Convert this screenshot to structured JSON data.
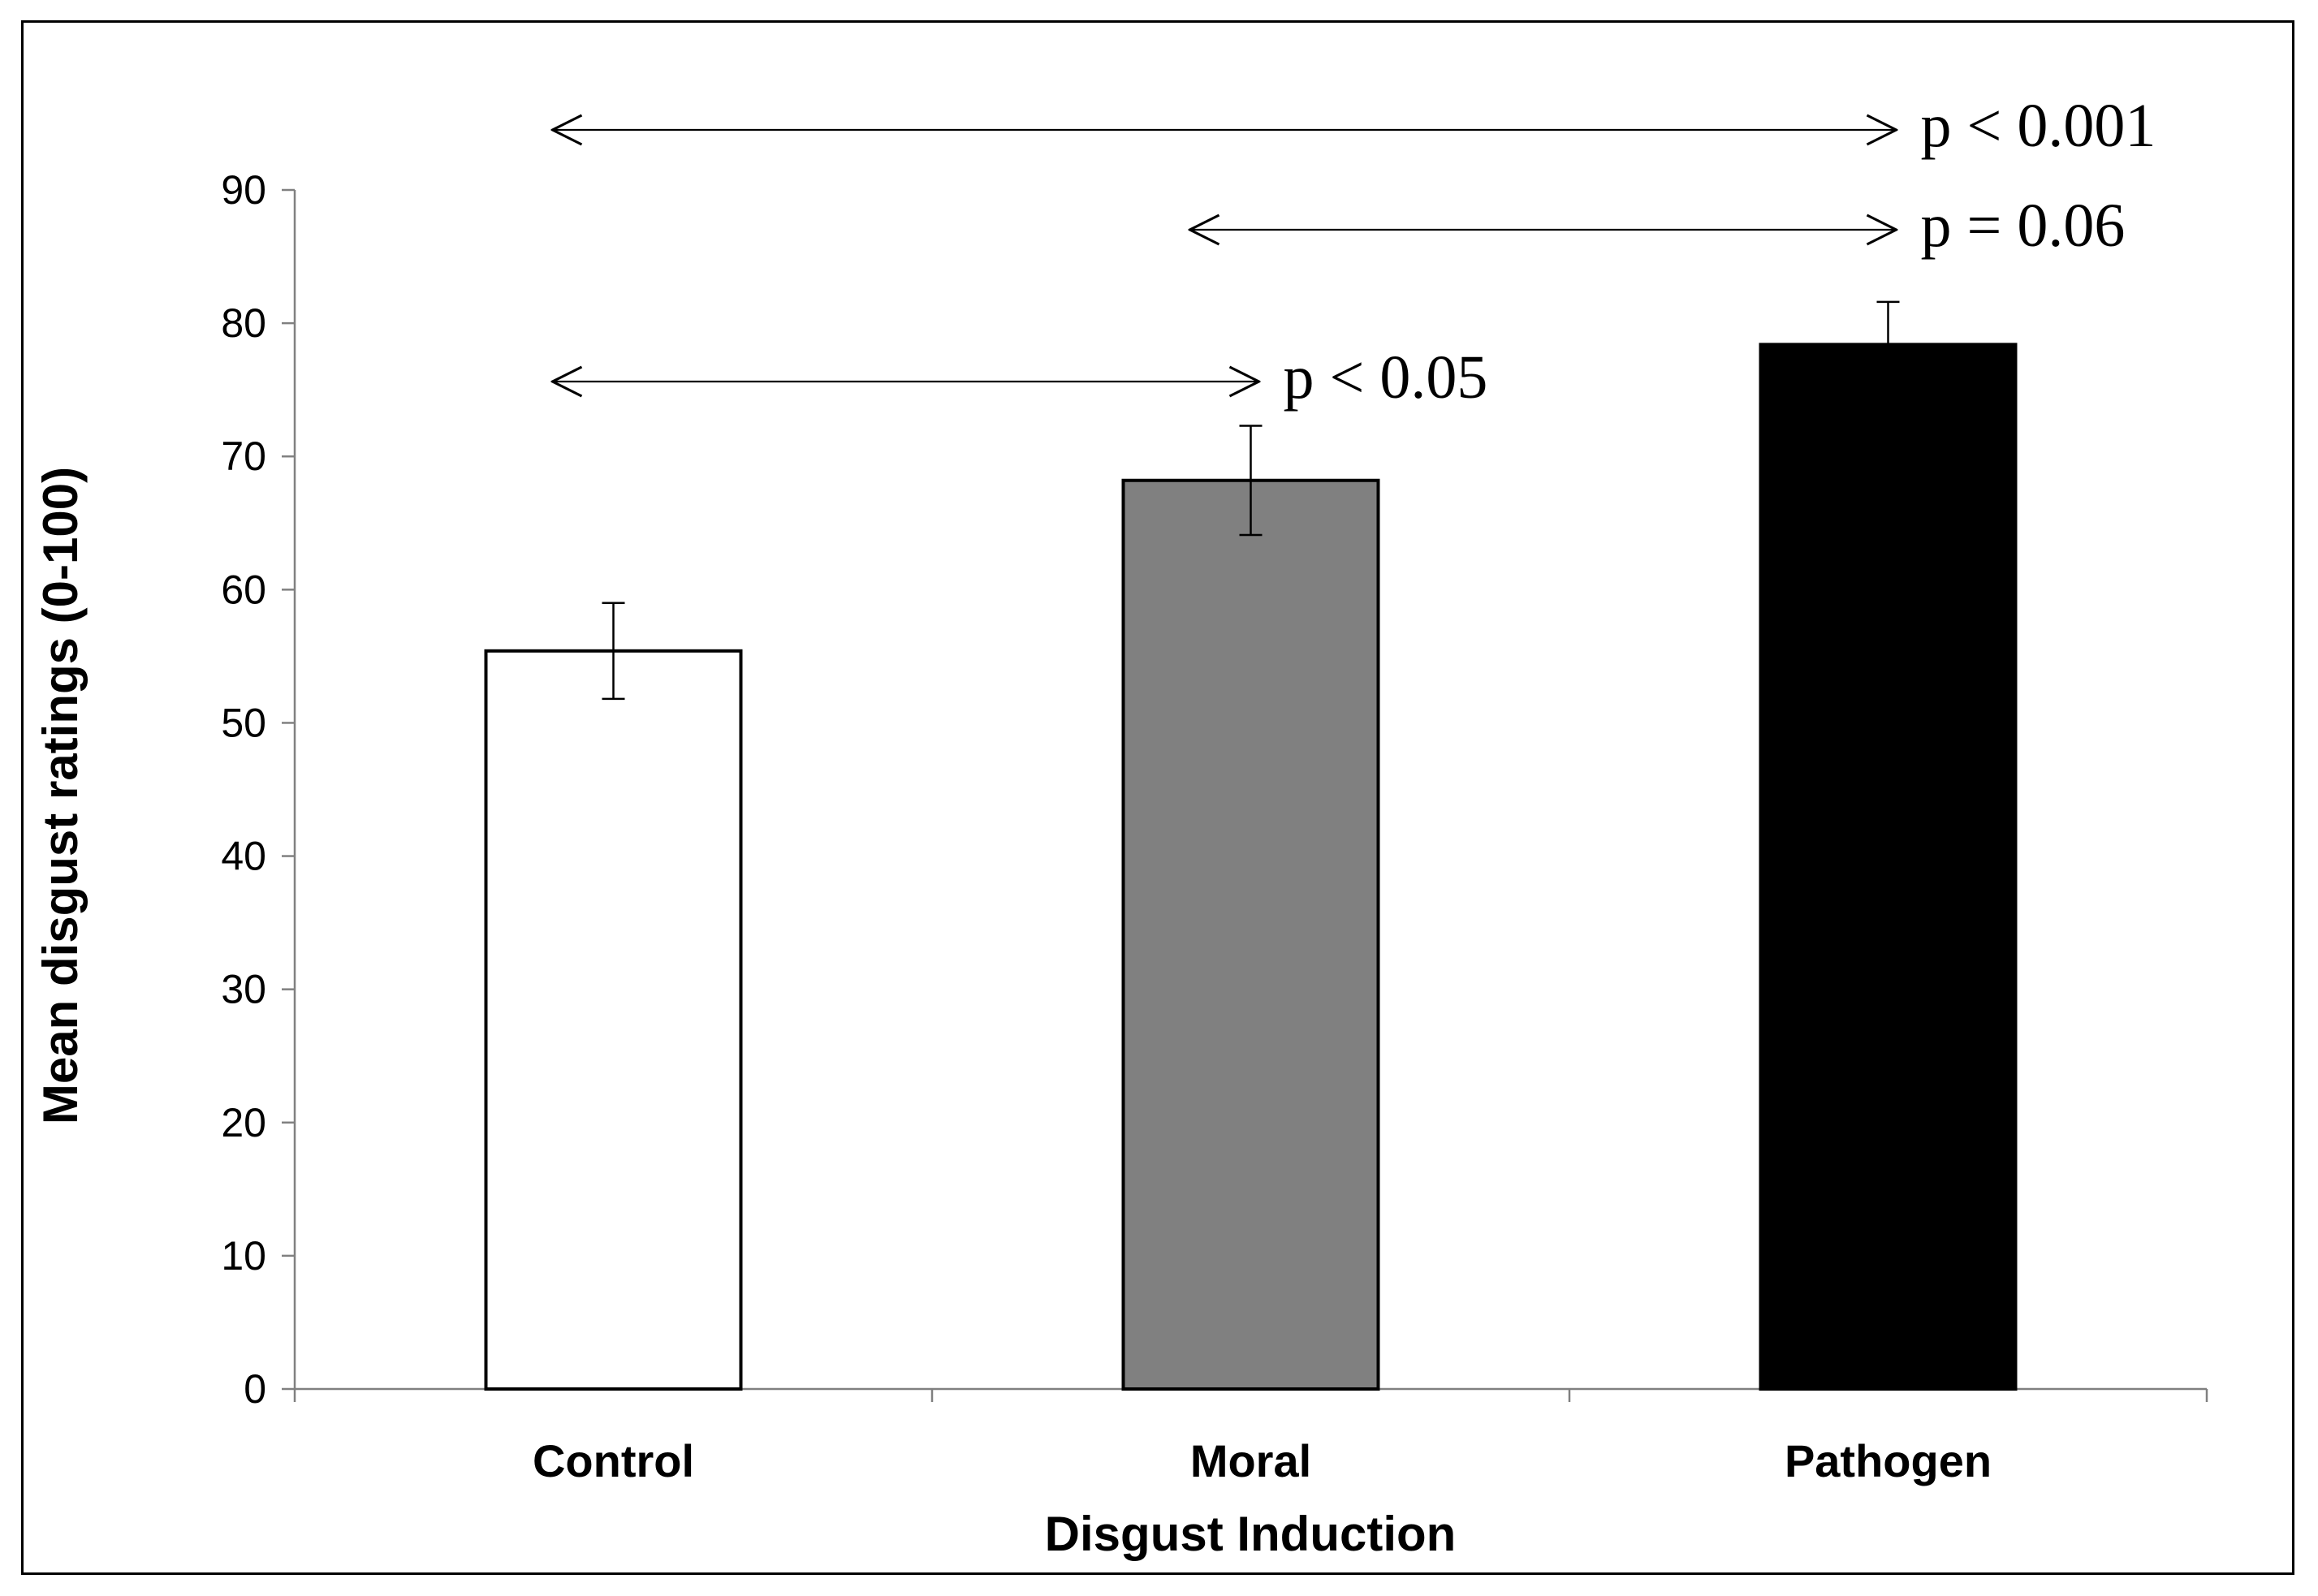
{
  "chart_data": {
    "type": "bar",
    "xlabel": "Disgust Induction",
    "ylabel": "Mean disgust  ratings (0-100)",
    "ylim": [
      0,
      90
    ],
    "yticks": [
      0,
      10,
      20,
      30,
      40,
      50,
      60,
      70,
      80,
      90
    ],
    "categories": [
      "Control",
      "Moral",
      "Pathogen"
    ],
    "values": [
      55.4,
      68.2,
      78.4
    ],
    "error": [
      3.6,
      4.1,
      3.2
    ],
    "colors": [
      "#ffffff",
      "#808080",
      "#000000"
    ],
    "grid": false,
    "legend": "none",
    "comparisons": [
      {
        "from": "Control",
        "to": "Pathogen",
        "label": "p < 0.001"
      },
      {
        "from": "Moral",
        "to": "Pathogen",
        "label": "p = 0.06"
      },
      {
        "from": "Control",
        "to": "Moral",
        "label": "p < 0.05"
      }
    ]
  }
}
